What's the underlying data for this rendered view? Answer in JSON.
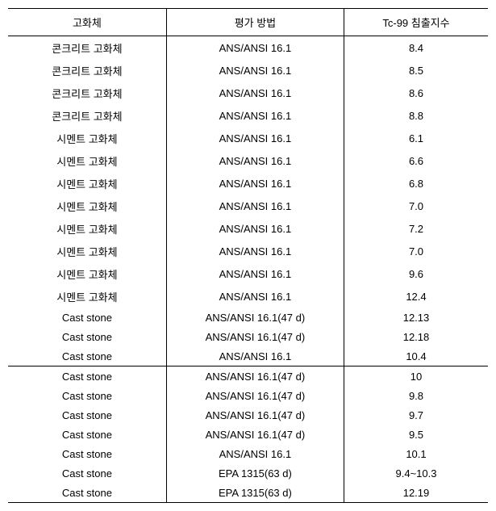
{
  "table": {
    "columns": [
      "고화체",
      "평가 방법",
      "Tc-99 침출지수"
    ],
    "rows": [
      [
        "콘크리트 고화체",
        "ANS/ANSI 16.1",
        "8.4"
      ],
      [
        "콘크리트 고화체",
        "ANS/ANSI 16.1",
        "8.5"
      ],
      [
        "콘크리트 고화체",
        "ANS/ANSI 16.1",
        "8.6"
      ],
      [
        "콘크리트 고화체",
        "ANS/ANSI 16.1",
        "8.8"
      ],
      [
        "시멘트 고화체",
        "ANS/ANSI 16.1",
        "6.1"
      ],
      [
        "시멘트 고화체",
        "ANS/ANSI 16.1",
        "6.6"
      ],
      [
        "시멘트 고화체",
        "ANS/ANSI 16.1",
        "6.8"
      ],
      [
        "시멘트 고화체",
        "ANS/ANSI 16.1",
        "7.0"
      ],
      [
        "시멘트 고화체",
        "ANS/ANSI 16.1",
        "7.2"
      ],
      [
        "시멘트 고화체",
        "ANS/ANSI 16.1",
        "7.0"
      ],
      [
        "시멘트 고화체",
        "ANS/ANSI 16.1",
        "9.6"
      ],
      [
        "시멘트 고화체",
        "ANS/ANSI 16.1",
        "12.4"
      ],
      [
        "Cast stone",
        "ANS/ANSI 16.1(47 d)",
        "12.13"
      ],
      [
        "Cast stone",
        "ANS/ANSI 16.1(47 d)",
        "12.18"
      ],
      [
        "Cast stone",
        "ANS/ANSI 16.1",
        "10.4"
      ],
      [
        "Cast stone",
        "ANS/ANSI 16.1(47 d)",
        "10"
      ],
      [
        "Cast stone",
        "ANS/ANSI 16.1(47 d)",
        "9.8"
      ],
      [
        "Cast stone",
        "ANS/ANSI 16.1(47 d)",
        "9.7"
      ],
      [
        "Cast stone",
        "ANS/ANSI 16.1(47 d)",
        "9.5"
      ],
      [
        "Cast stone",
        "ANS/ANSI 16.1",
        "10.1"
      ],
      [
        "Cast stone",
        "EPA 1315(63 d)",
        "9.4~10.3"
      ],
      [
        "Cast stone",
        "EPA 1315(63 d)",
        "12.19"
      ]
    ],
    "separator_after_zero_indexed": 14
  }
}
